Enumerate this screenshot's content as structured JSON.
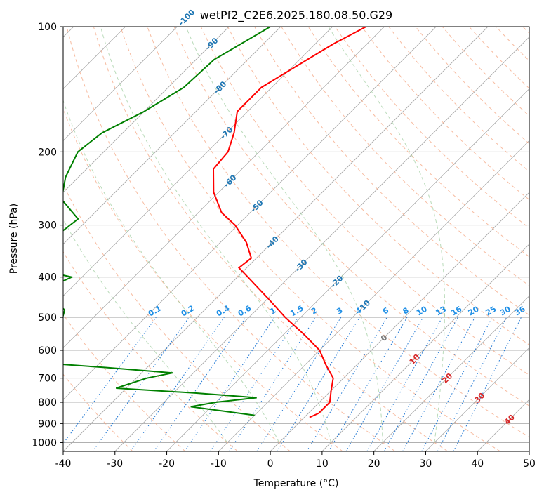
{
  "chart_data": {
    "type": "line",
    "subtype": "skew-t log-p diagram",
    "title": "wetPf2_C2E6.2025.180.08.50.G29",
    "xlabel": "Temperature (°C)",
    "ylabel": "Pressure (hPa)",
    "xlim": [
      -40,
      50
    ],
    "ylim": [
      1050,
      100
    ],
    "y_scale": "log",
    "grid": true,
    "x_ticks": [
      -40,
      -30,
      -20,
      -10,
      0,
      10,
      20,
      30,
      40,
      50
    ],
    "y_ticks": [
      1000,
      900,
      800,
      700,
      600,
      500,
      400,
      300,
      200,
      100
    ],
    "series": [
      {
        "color": "#ff0000",
        "points": [
          {
            "p": 100,
            "t": -63.5
          },
          {
            "p": 110,
            "t": -66.5
          },
          {
            "p": 120,
            "t": -68.5
          },
          {
            "p": 140,
            "t": -72
          },
          {
            "p": 160,
            "t": -72
          },
          {
            "p": 180,
            "t": -68.5
          },
          {
            "p": 200,
            "t": -66
          },
          {
            "p": 220,
            "t": -65.5
          },
          {
            "p": 250,
            "t": -61
          },
          {
            "p": 280,
            "t": -55.5
          },
          {
            "p": 300,
            "t": -50.5
          },
          {
            "p": 330,
            "t": -45
          },
          {
            "p": 360,
            "t": -41
          },
          {
            "p": 380,
            "t": -41.5
          },
          {
            "p": 400,
            "t": -38
          },
          {
            "p": 450,
            "t": -30
          },
          {
            "p": 500,
            "t": -23
          },
          {
            "p": 550,
            "t": -16
          },
          {
            "p": 600,
            "t": -10
          },
          {
            "p": 650,
            "t": -6
          },
          {
            "p": 700,
            "t": -2
          },
          {
            "p": 750,
            "t": 0
          },
          {
            "p": 800,
            "t": 2
          },
          {
            "p": 850,
            "t": 2
          },
          {
            "p": 870,
            "t": 1
          }
        ]
      },
      {
        "color": "#008000",
        "points": [
          {
            "p": 100,
            "t": -82
          },
          {
            "p": 120,
            "t": -86.5
          },
          {
            "p": 140,
            "t": -87
          },
          {
            "p": 160,
            "t": -90
          },
          {
            "p": 180,
            "t": -94
          },
          {
            "p": 200,
            "t": -95
          },
          {
            "p": 230,
            "t": -92.5
          },
          {
            "p": 260,
            "t": -89
          },
          {
            "p": 290,
            "t": -82
          },
          {
            "p": 320,
            "t": -83
          },
          {
            "p": 350,
            "t": -81
          },
          {
            "p": 380,
            "t": -82
          },
          {
            "p": 400,
            "t": -72
          },
          {
            "p": 430,
            "t": -75
          },
          {
            "p": 480,
            "t": -67
          },
          {
            "p": 520,
            "t": -65
          },
          {
            "p": 560,
            "t": -62
          },
          {
            "p": 600,
            "t": -61
          },
          {
            "p": 640,
            "t": -64
          },
          {
            "p": 660,
            "t": -48
          },
          {
            "p": 680,
            "t": -34
          },
          {
            "p": 700,
            "t": -38
          },
          {
            "p": 740,
            "t": -42
          },
          {
            "p": 760,
            "t": -26
          },
          {
            "p": 780,
            "t": -13
          },
          {
            "p": 800,
            "t": -20
          },
          {
            "p": 820,
            "t": -24
          },
          {
            "p": 860,
            "t": -10
          }
        ]
      }
    ],
    "isotherm_labels": [
      "-100",
      "-90",
      "-80",
      "-70",
      "-60",
      "-50",
      "-40",
      "-30",
      "-20",
      "-10",
      "0",
      "10",
      "20",
      "30",
      "40"
    ],
    "mixing_ratio_labels": [
      "0.1",
      "0.2",
      "0.4",
      "0.6",
      "1",
      "1.5",
      "2",
      "3",
      "4",
      "6",
      "8",
      "10",
      "13",
      "16",
      "20",
      "25",
      "30",
      "36"
    ]
  }
}
